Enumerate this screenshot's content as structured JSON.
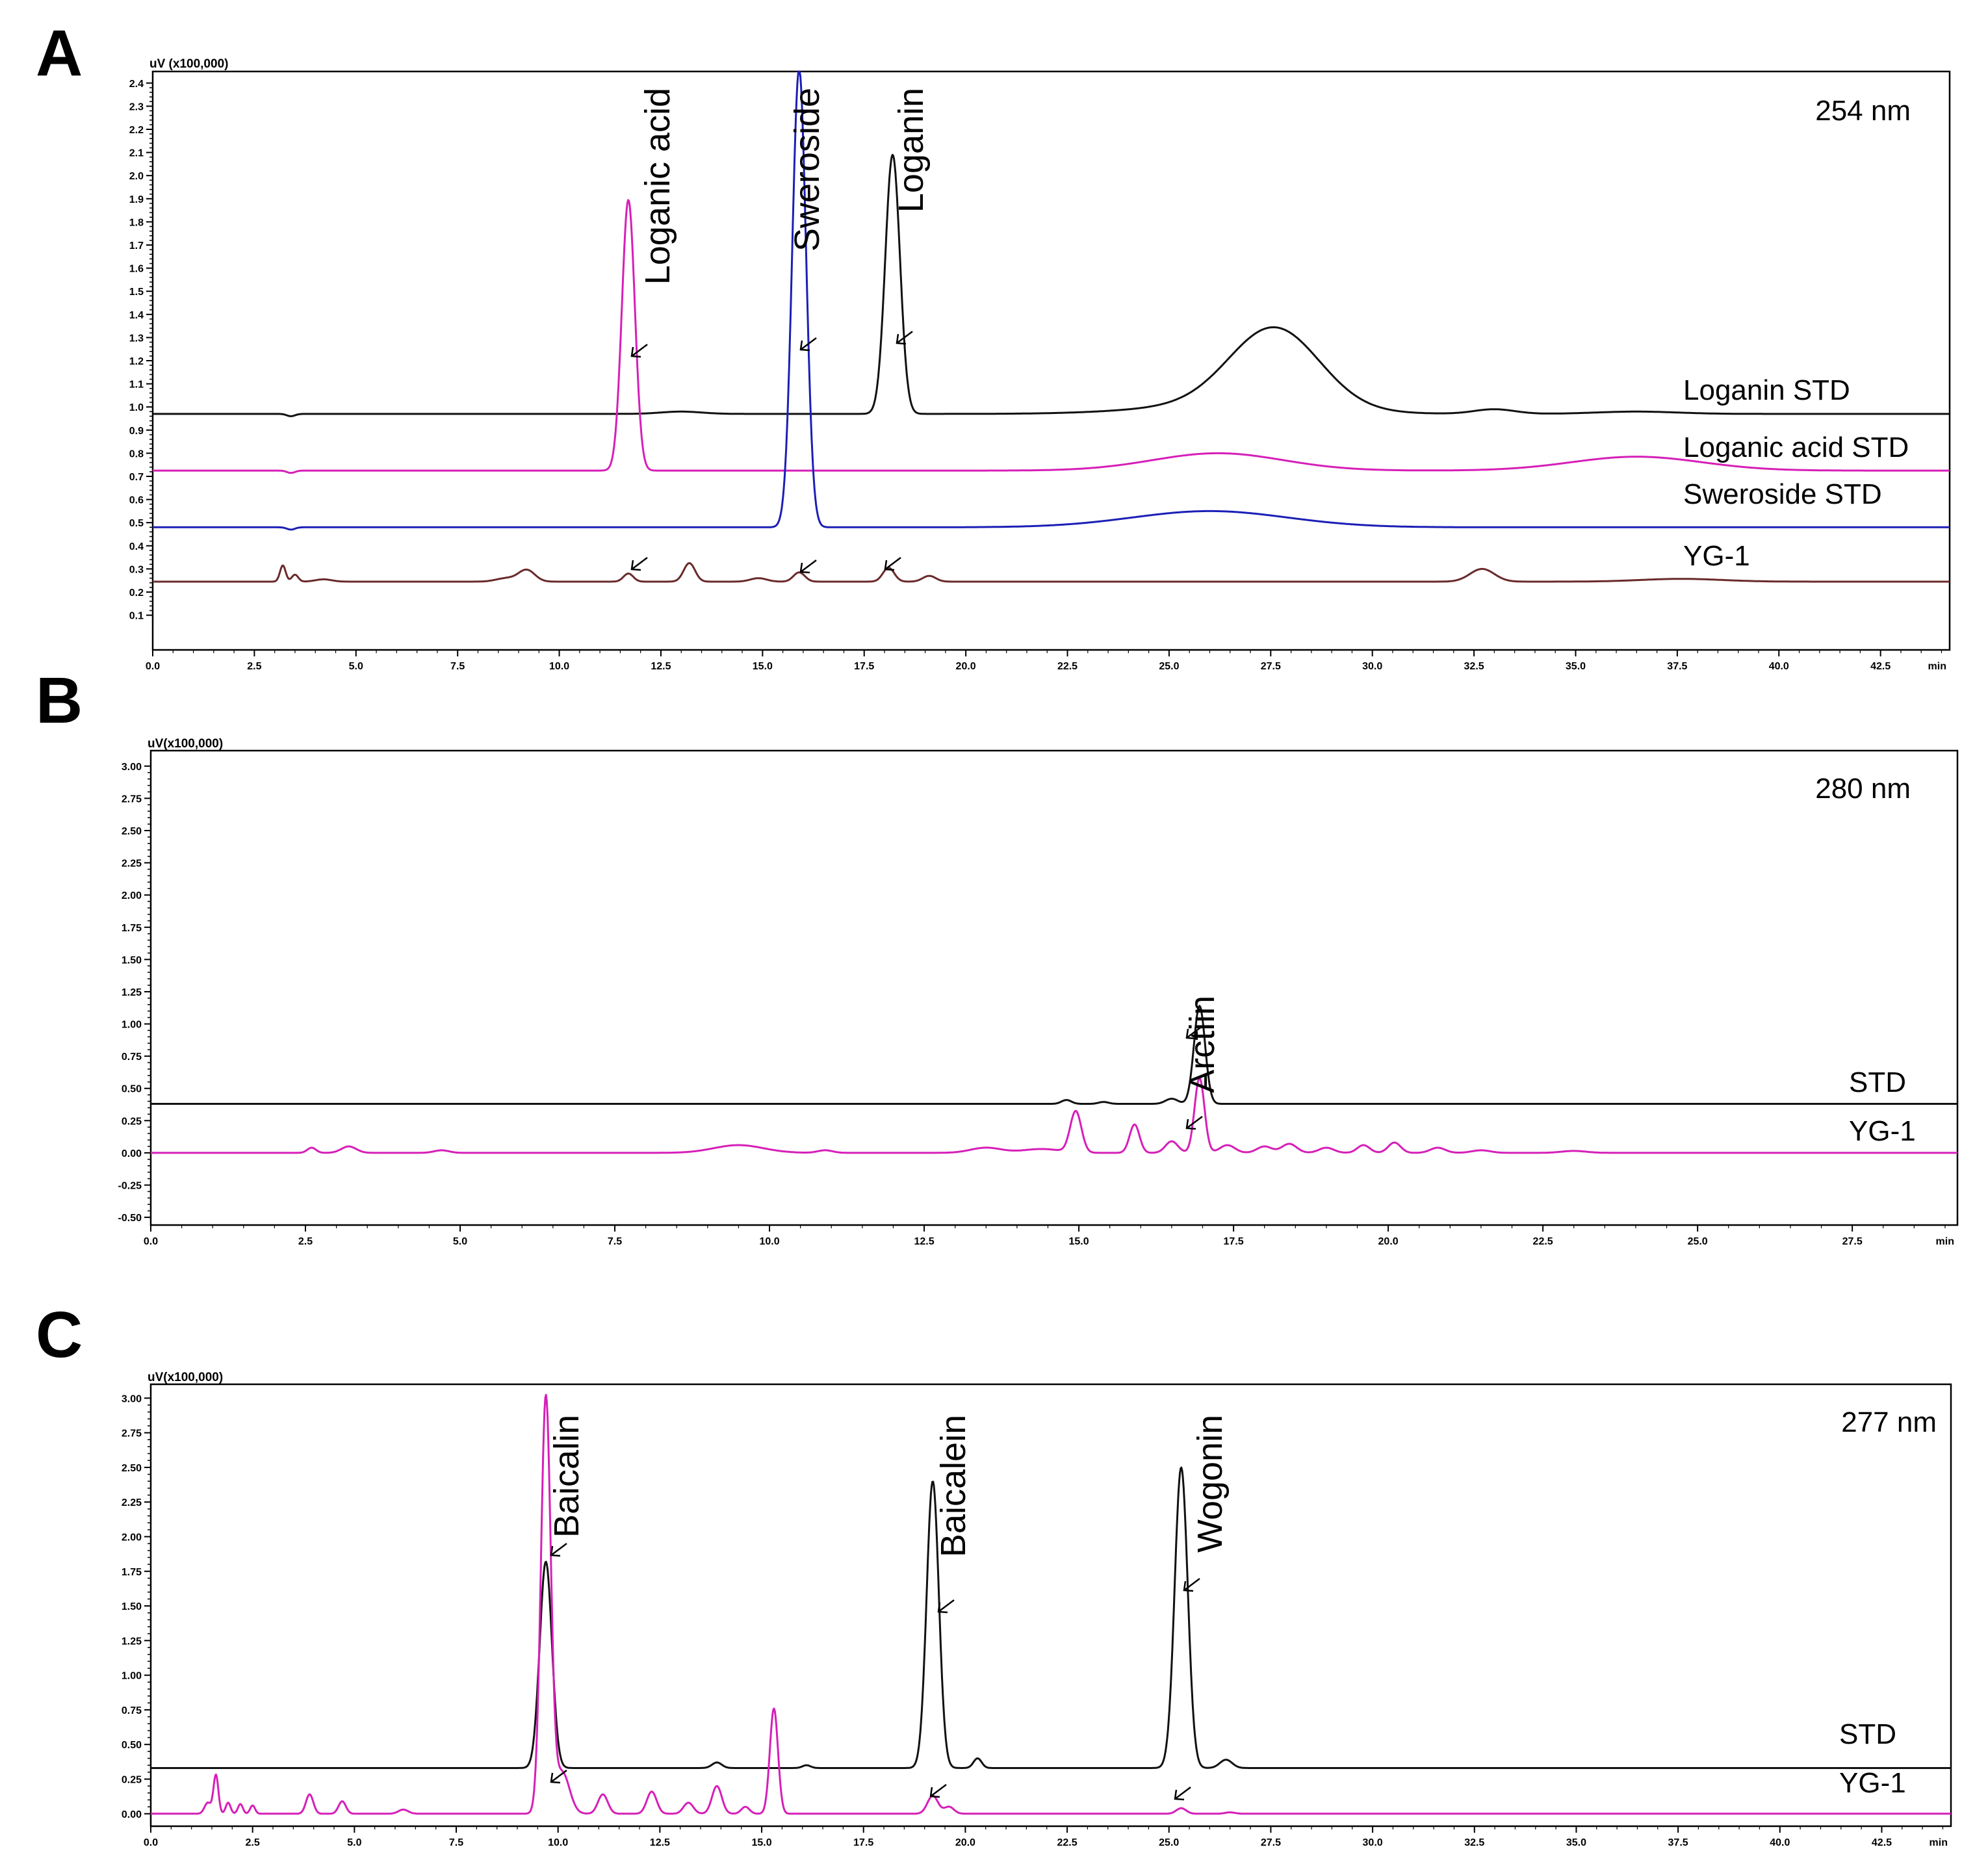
{
  "colors": {
    "black": "#111111",
    "magenta": "#d61fb8",
    "blue": "#1b1fb5",
    "maroon": "#6a2a2a"
  },
  "chart_data": [
    {
      "type": "line",
      "panel": "A",
      "title": "254 nm",
      "ylabel": "uV (x100,000)",
      "xlabel": "min",
      "xlim": [
        0,
        44.2
      ],
      "ylim": [
        -0.05,
        2.45
      ],
      "xticks": [
        "0.0",
        "2.5",
        "5.0",
        "7.5",
        "10.0",
        "12.5",
        "15.0",
        "17.5",
        "20.0",
        "22.5",
        "25.0",
        "27.5",
        "30.0",
        "32.5",
        "35.0",
        "37.5",
        "40.0",
        "42.5"
      ],
      "yticks": [
        "0.1",
        "0.2",
        "0.3",
        "0.4",
        "0.5",
        "0.6",
        "0.7",
        "0.8",
        "0.9",
        "1.0",
        "1.1",
        "1.2",
        "1.3",
        "1.4",
        "1.5",
        "1.6",
        "1.7",
        "1.8",
        "1.9",
        "2.0",
        "2.1",
        "2.2",
        "2.3",
        "2.4"
      ],
      "series": [
        {
          "name": "Loganin STD",
          "color": "black",
          "baseline": 0.97,
          "peaks": [
            [
              3.4,
              -0.01,
              0.1
            ],
            [
              13.0,
              0.01,
              0.5
            ],
            [
              18.2,
              1.12,
              0.18
            ],
            [
              27.6,
              0.34,
              1.1
            ],
            [
              26.5,
              0.04,
              2.0
            ],
            [
              33.0,
              0.02,
              0.5
            ],
            [
              36.5,
              0.01,
              1.0
            ]
          ]
        },
        {
          "name": "Loganic acid  STD",
          "color": "magenta",
          "baseline": 0.725,
          "peaks": [
            [
              3.4,
              -0.01,
              0.1
            ],
            [
              11.7,
              1.17,
              0.16
            ],
            [
              26.2,
              0.075,
              1.6
            ],
            [
              36.5,
              0.06,
              1.6
            ]
          ]
        },
        {
          "name": "Sweroside STD",
          "color": "blue",
          "baseline": 0.48,
          "peaks": [
            [
              3.4,
              -0.01,
              0.1
            ],
            [
              15.9,
              1.98,
              0.17
            ],
            [
              26.0,
              0.07,
              1.9
            ]
          ]
        },
        {
          "name": "YG-1",
          "color": "maroon",
          "baseline": 0.245,
          "peaks": [
            [
              3.2,
              0.07,
              0.07
            ],
            [
              3.5,
              0.03,
              0.08
            ],
            [
              4.2,
              0.01,
              0.2
            ],
            [
              9.2,
              0.05,
              0.2
            ],
            [
              8.7,
              0.015,
              0.25
            ],
            [
              11.7,
              0.035,
              0.12
            ],
            [
              13.2,
              0.08,
              0.14
            ],
            [
              14.9,
              0.015,
              0.2
            ],
            [
              15.9,
              0.04,
              0.14
            ],
            [
              18.1,
              0.06,
              0.14
            ],
            [
              19.1,
              0.025,
              0.16
            ],
            [
              32.7,
              0.055,
              0.3
            ],
            [
              37.6,
              0.012,
              1.0
            ]
          ]
        }
      ],
      "annotations": [
        {
          "text": "Loganic acid",
          "x": 11.7,
          "y": 2.38
        },
        {
          "text": "Sweroside",
          "x": 15.9,
          "y": 2.38
        },
        {
          "text": "Loganin",
          "x": 18.2,
          "y": 2.38
        }
      ],
      "wave_label": "254 nm"
    },
    {
      "type": "line",
      "panel": "B",
      "title": "280 nm",
      "ylabel": "uV(x100,000)",
      "xlabel": "min",
      "xlim": [
        0,
        29.2
      ],
      "ylim": [
        -0.56,
        3.12
      ],
      "xticks": [
        "0.0",
        "2.5",
        "5.0",
        "7.5",
        "10.0",
        "12.5",
        "15.0",
        "17.5",
        "20.0",
        "22.5",
        "25.0",
        "27.5"
      ],
      "yticks": [
        "-0.50",
        "-0.25",
        "0.00",
        "0.25",
        "0.50",
        "0.75",
        "1.00",
        "1.25",
        "1.50",
        "1.75",
        "2.00",
        "2.25",
        "2.50",
        "2.75",
        "3.00"
      ],
      "series": [
        {
          "name": "STD",
          "color": "black",
          "baseline": 0.38,
          "peaks": [
            [
              14.8,
              0.03,
              0.08
            ],
            [
              15.4,
              0.015,
              0.08
            ],
            [
              16.5,
              0.04,
              0.1
            ],
            [
              16.95,
              0.76,
              0.09
            ]
          ]
        },
        {
          "name": "YG-1",
          "color": "magenta",
          "baseline": 0.0,
          "peaks": [
            [
              2.6,
              0.04,
              0.07
            ],
            [
              3.2,
              0.05,
              0.12
            ],
            [
              4.7,
              0.02,
              0.12
            ],
            [
              9.5,
              0.06,
              0.4
            ],
            [
              10.9,
              0.02,
              0.12
            ],
            [
              13.5,
              0.04,
              0.25
            ],
            [
              14.4,
              0.03,
              0.3
            ],
            [
              14.95,
              0.32,
              0.09
            ],
            [
              15.9,
              0.22,
              0.08
            ],
            [
              16.5,
              0.09,
              0.1
            ],
            [
              16.95,
              0.58,
              0.08
            ],
            [
              17.4,
              0.06,
              0.12
            ],
            [
              18.0,
              0.05,
              0.12
            ],
            [
              18.4,
              0.07,
              0.12
            ],
            [
              19.0,
              0.04,
              0.12
            ],
            [
              19.6,
              0.06,
              0.1
            ],
            [
              20.1,
              0.08,
              0.1
            ],
            [
              20.8,
              0.04,
              0.12
            ],
            [
              21.5,
              0.02,
              0.15
            ],
            [
              23.0,
              0.015,
              0.2
            ]
          ]
        }
      ],
      "annotations": [
        {
          "text": "Arctiin",
          "x": 16.95,
          "y": 1.22
        }
      ],
      "wave_label": "280 nm"
    },
    {
      "type": "line",
      "panel": "C",
      "title": "277 nm",
      "ylabel": "uV(x100,000)",
      "xlabel": "min",
      "xlim": [
        0,
        44.2
      ],
      "ylim": [
        -0.09,
        3.1
      ],
      "xticks": [
        "0.0",
        "2.5",
        "5.0",
        "7.5",
        "10.0",
        "12.5",
        "15.0",
        "17.5",
        "20.0",
        "22.5",
        "25.0",
        "27.5",
        "30.0",
        "32.5",
        "35.0",
        "37.5",
        "40.0",
        "42.5"
      ],
      "yticks": [
        "0.00",
        "0.25",
        "0.50",
        "0.75",
        "1.00",
        "1.25",
        "1.50",
        "1.75",
        "2.00",
        "2.25",
        "2.50",
        "2.75",
        "3.00"
      ],
      "series": [
        {
          "name": "STD",
          "color": "black",
          "baseline": 0.33,
          "peaks": [
            [
              9.7,
              1.49,
              0.15
            ],
            [
              13.9,
              0.04,
              0.12
            ],
            [
              16.1,
              0.02,
              0.1
            ],
            [
              19.2,
              2.07,
              0.15
            ],
            [
              20.3,
              0.07,
              0.1
            ],
            [
              25.3,
              2.17,
              0.16
            ],
            [
              26.4,
              0.06,
              0.15
            ]
          ]
        },
        {
          "name": "YG-1",
          "color": "magenta",
          "baseline": 0.0,
          "peaks": [
            [
              1.4,
              0.08,
              0.08
            ],
            [
              1.6,
              0.28,
              0.06
            ],
            [
              1.9,
              0.08,
              0.06
            ],
            [
              2.2,
              0.07,
              0.06
            ],
            [
              2.5,
              0.06,
              0.06
            ],
            [
              3.9,
              0.14,
              0.09
            ],
            [
              4.7,
              0.09,
              0.09
            ],
            [
              6.2,
              0.03,
              0.12
            ],
            [
              9.7,
              3.0,
              0.12
            ],
            [
              10.1,
              0.3,
              0.18
            ],
            [
              11.1,
              0.14,
              0.12
            ],
            [
              12.3,
              0.16,
              0.12
            ],
            [
              13.2,
              0.08,
              0.12
            ],
            [
              13.9,
              0.2,
              0.12
            ],
            [
              14.6,
              0.05,
              0.1
            ],
            [
              15.3,
              0.76,
              0.1
            ],
            [
              19.2,
              0.13,
              0.13
            ],
            [
              19.6,
              0.05,
              0.12
            ],
            [
              25.3,
              0.04,
              0.12
            ],
            [
              26.5,
              0.01,
              0.12
            ]
          ]
        }
      ],
      "annotations": [
        {
          "text": "Baicalin",
          "x": 9.9,
          "y": 2.88
        },
        {
          "text": "Baicalein",
          "x": 19.5,
          "y": 2.88
        },
        {
          "text": "Wogonin",
          "x": 25.6,
          "y": 2.88
        }
      ],
      "wave_label": "277 nm"
    }
  ]
}
